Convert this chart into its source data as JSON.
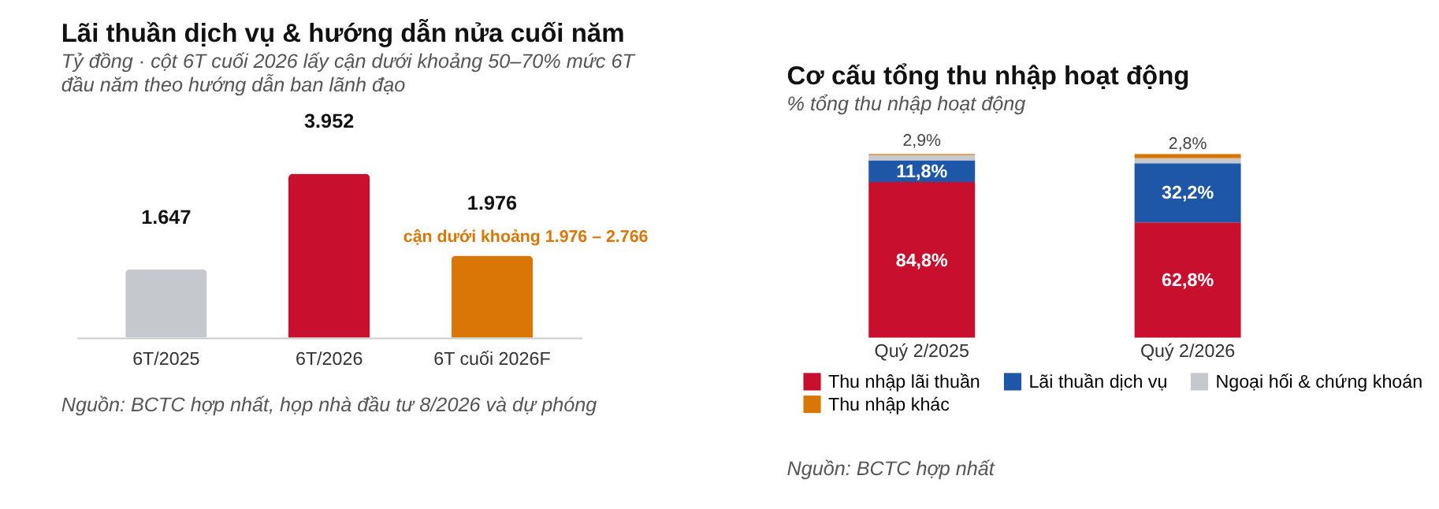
{
  "chart_data": [
    {
      "type": "bar",
      "title": "Lãi thuần dịch vụ & hướng dẫn nửa cuối năm",
      "subtitle": "Tỷ đồng · cột 6T cuối 2026 lấy cận dưới khoảng 50–70% mức 6T đầu năm theo hướng dẫn ban lãnh đạo",
      "categories": [
        "6T/2025",
        "6T/2026",
        "6T cuối 2026F"
      ],
      "values": [
        1647,
        3952,
        1976
      ],
      "colors": [
        "#c5c9cd",
        "#c8102e",
        "#d97706"
      ],
      "value_labels": [
        "1.647",
        "3.952",
        "1.976"
      ],
      "annotations": [
        {
          "text": "cận dưới khoảng 1.976 – 2.766",
          "x": "6T cuối 2026F",
          "y": 1976
        },
        "Nguồn: BCTC hợp nhất, họp nhà đầu tư 8/2026 và dự phóng"
      ],
      "legend": false
    },
    {
      "type": "bar",
      "title": "Cơ cấu tổng thu nhập hoạt động",
      "subtitle": "% tổng thu nhập hoạt động",
      "categories": [
        "Quý 2/2025",
        "Quý 2/2026"
      ],
      "stacked": true,
      "series": [
        {
          "name": "Thu nhập lãi thuần",
          "color": "#c8102e",
          "values": [
            84.8,
            62.8
          ],
          "value_labels": [
            "84,8%",
            "62,8%"
          ]
        },
        {
          "name": "Lãi thuần dịch vụ",
          "color": "#1f57a8",
          "values": [
            11.8,
            32.2
          ],
          "value_labels": [
            "11,8%",
            "32,2%"
          ]
        },
        {
          "name": "Ngoại hối & chứng khoán",
          "color": "#c5c9cd",
          "values": [
            2.9,
            2.8
          ],
          "value_labels": [
            "2,9%",
            "2,8%"
          ]
        },
        {
          "name": "Thu nhập khác",
          "color": "#d97706",
          "values": [
            0.5,
            2.2
          ]
        }
      ],
      "annotations": [
        "Nguồn: BCTC hợp nhất"
      ],
      "legend": "bottom"
    }
  ]
}
